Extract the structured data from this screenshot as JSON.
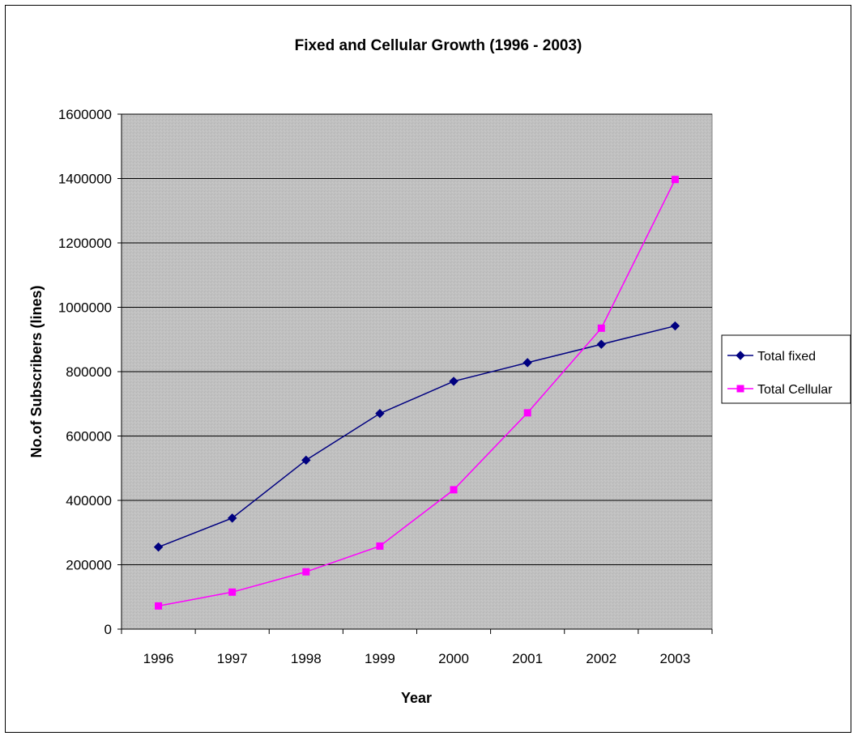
{
  "chart_data": {
    "type": "line",
    "title": "Fixed and Cellular Growth (1996 - 2003)",
    "xlabel": "Year",
    "ylabel": "No.of Subscribers (lines)",
    "categories": [
      "1996",
      "1997",
      "1998",
      "1999",
      "2000",
      "2001",
      "2002",
      "2003"
    ],
    "ylim": [
      0,
      1600000
    ],
    "yticks": [
      "0",
      "200000",
      "400000",
      "600000",
      "800000",
      "1000000",
      "1200000",
      "1400000",
      "1600000"
    ],
    "grid": true,
    "legend_position": "right",
    "series": [
      {
        "name": "Total fixed",
        "color": "#000080",
        "marker": "diamond",
        "values": [
          255000,
          345000,
          525000,
          670000,
          770000,
          828000,
          885000,
          942000
        ]
      },
      {
        "name": "Total Cellular",
        "color": "#FF00FF",
        "marker": "square",
        "values": [
          72000,
          115000,
          178000,
          258000,
          433000,
          672000,
          935000,
          1397000
        ]
      }
    ],
    "plot_background": "#C0C0C0"
  }
}
